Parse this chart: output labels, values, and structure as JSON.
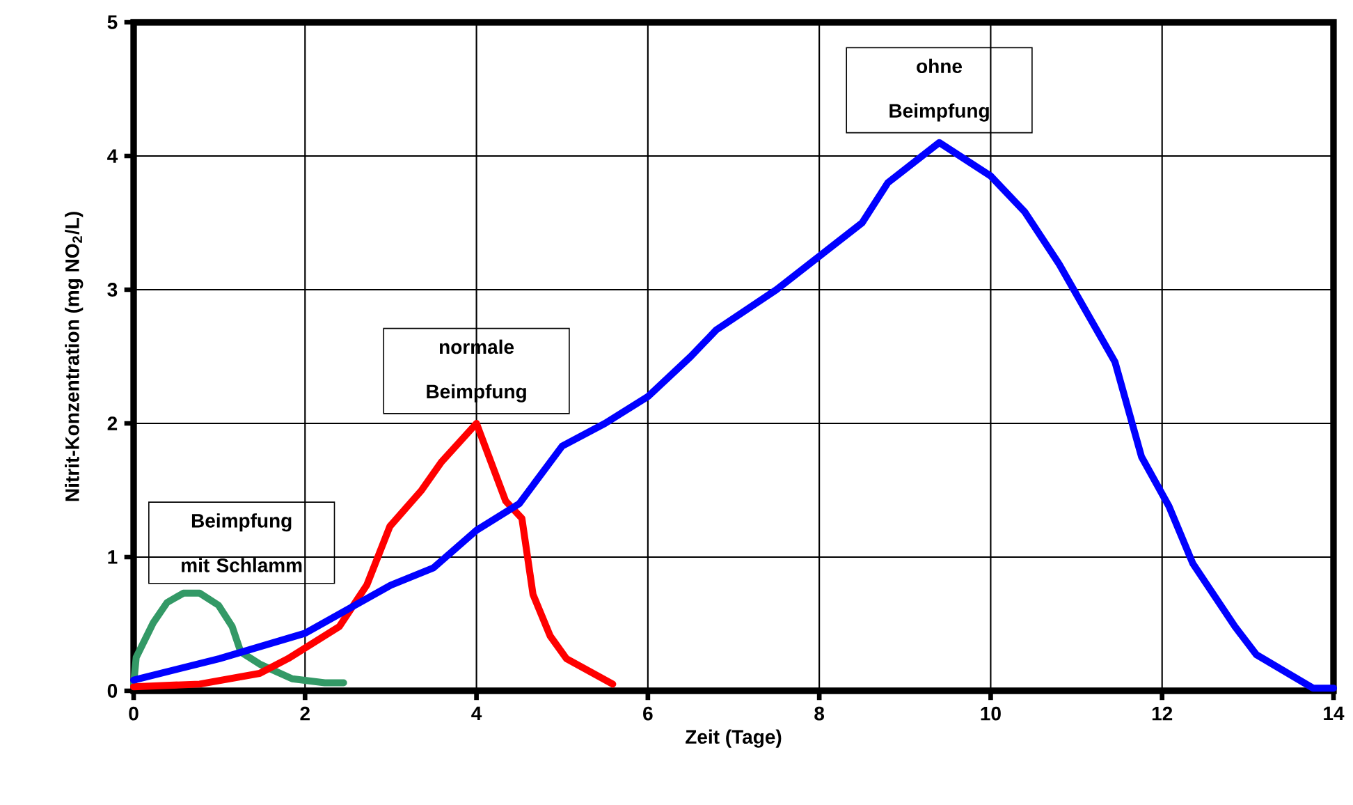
{
  "chart_data": {
    "type": "line",
    "xlabel": "Zeit (Tage)",
    "ylabel": "Nitrit-Konzentration (mg NO$_{2}$/L)",
    "xlim": [
      0,
      14
    ],
    "xticks": [
      0,
      2,
      4,
      6,
      8,
      10,
      12,
      14
    ],
    "ylim": [
      0,
      5
    ],
    "yticks": [
      0,
      1,
      2,
      3,
      4,
      5
    ],
    "grid": true,
    "legend": false,
    "marker": "none",
    "line_style": "solid",
    "series": [
      {
        "name": "Beimpfung mit Schlamm",
        "color": "#339966",
        "x": [
          0,
          0.03,
          0.23,
          0.39,
          0.58,
          0.77,
          0.99,
          1.15,
          1.25,
          1.47,
          1.85,
          2.23,
          2.45
        ],
        "values": [
          0.05,
          0.25,
          0.51,
          0.66,
          0.73,
          0.73,
          0.64,
          0.48,
          0.29,
          0.2,
          0.09,
          0.06,
          0.06
        ]
      },
      {
        "name": "normale Beimpfung",
        "color": "#ff0000",
        "x": [
          0,
          0.77,
          1.47,
          1.8,
          2.4,
          2.72,
          2.99,
          3.36,
          3.59,
          4.0,
          4.34,
          4.53,
          4.66,
          4.86,
          5.05,
          5.59
        ],
        "values": [
          0.03,
          0.05,
          0.13,
          0.24,
          0.48,
          0.79,
          1.23,
          1.5,
          1.71,
          2.0,
          1.42,
          1.29,
          0.72,
          0.41,
          0.24,
          0.05
        ]
      },
      {
        "name": "ohne Beimpfung",
        "color": "#0000ff",
        "x": [
          0,
          1,
          2,
          3,
          3.5,
          4,
          4.5,
          5,
          5.5,
          6,
          6.5,
          6.8,
          7.5,
          8,
          8.5,
          8.8,
          9.4,
          10,
          10.4,
          10.8,
          11.45,
          11.76,
          12.08,
          12.36,
          12.85,
          13.1,
          13.76,
          14
        ],
        "values": [
          0.08,
          0.24,
          0.43,
          0.79,
          0.92,
          1.2,
          1.4,
          1.83,
          2.0,
          2.2,
          2.5,
          2.7,
          3.0,
          3.25,
          3.5,
          3.8,
          4.1,
          3.85,
          3.58,
          3.19,
          2.46,
          1.75,
          1.38,
          0.95,
          0.48,
          0.27,
          0.02,
          0.02
        ]
      }
    ]
  }
}
